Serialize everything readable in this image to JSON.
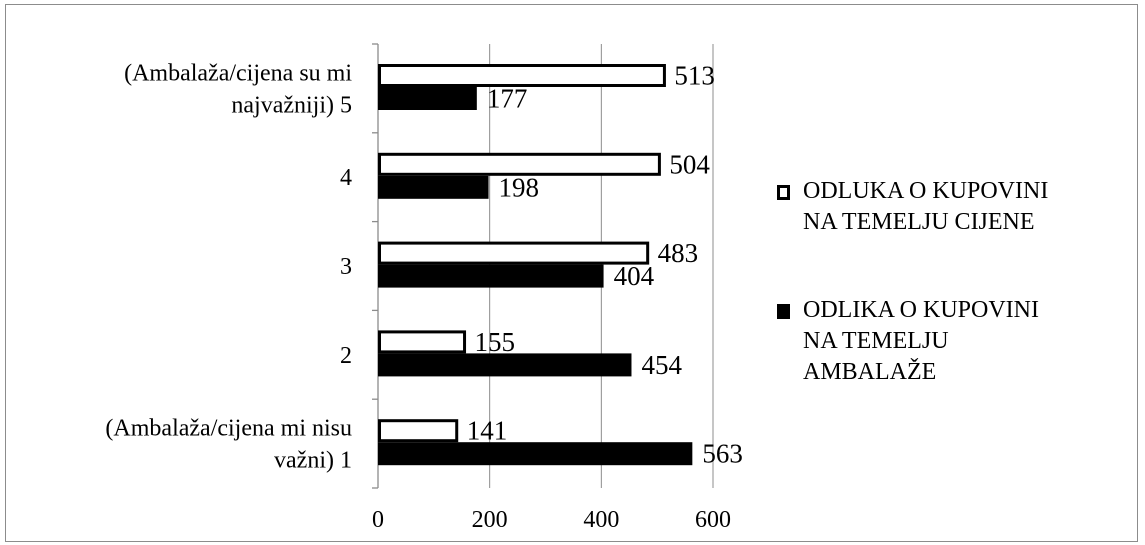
{
  "chart_data": {
    "type": "bar",
    "orientation": "horizontal",
    "categories": [
      [
        "(Ambalaža/cijena mi nisu",
        "važni) 1"
      ],
      [
        "2"
      ],
      [
        "3"
      ],
      [
        "4"
      ],
      [
        "(Ambalaža/cijena su mi",
        "najvažniji) 5"
      ]
    ],
    "series": [
      {
        "name": "ODLUKA O KUPOVINI NA TEMELJU CIJENE",
        "values": [
          141,
          155,
          483,
          504,
          513
        ],
        "fill": "#ffffff",
        "stroke": "#000000"
      },
      {
        "name": "ODLIKA O KUPOVINI NA TEMELJU AMBALAŽE",
        "values": [
          563,
          454,
          404,
          198,
          177
        ],
        "fill": "#000000",
        "stroke": "#000000"
      }
    ],
    "xlim": [
      0,
      600
    ],
    "xticks": [
      "0",
      "200",
      "400",
      "600"
    ],
    "grid": true,
    "legend": {
      "position": "right",
      "items": [
        [
          "ODLUKA O KUPOVINI",
          "NA TEMELJU CIJENE"
        ],
        [
          "ODLIKA O KUPOVINI",
          "NA TEMELJU",
          "AMBALAŽE"
        ]
      ]
    },
    "title": "",
    "xlabel": "",
    "ylabel": ""
  }
}
